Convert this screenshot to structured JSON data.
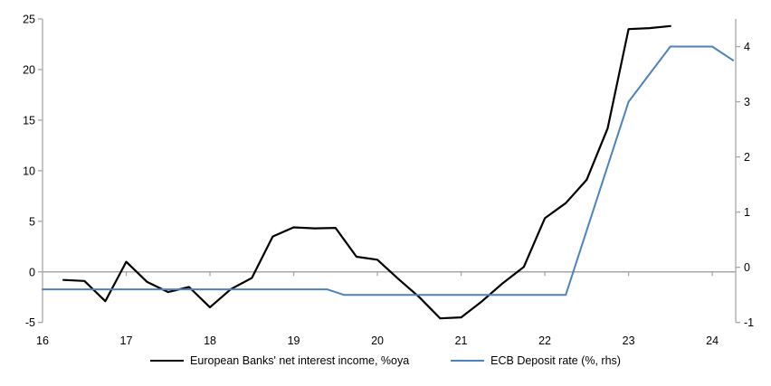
{
  "chart_data": {
    "type": "line",
    "title": "",
    "xlabel": "",
    "ylabel_left": "",
    "ylabel_right": "",
    "background": "#ffffff",
    "axis_color": "#a6a6a6",
    "text_color": "#000000",
    "grid": false,
    "zero_line": true,
    "x_axis": {
      "min": 16,
      "max": 24.28,
      "ticks": [
        16,
        17,
        18,
        19,
        20,
        21,
        22,
        23,
        24
      ]
    },
    "left_axis": {
      "min": -5,
      "max": 25,
      "ticks": [
        -5,
        0,
        5,
        10,
        15,
        20,
        25
      ]
    },
    "right_axis": {
      "min": -1,
      "max": 4.5,
      "ticks": [
        -1,
        0,
        1,
        2,
        3,
        4
      ]
    },
    "series": [
      {
        "name": "European Banks' net interest income, %oya",
        "axis": "left",
        "color": "#000000",
        "line_width": 2.2,
        "points": [
          [
            16.25,
            -0.8
          ],
          [
            16.5,
            -0.9
          ],
          [
            16.75,
            -2.9
          ],
          [
            17.0,
            1.0
          ],
          [
            17.25,
            -1.0
          ],
          [
            17.5,
            -2.0
          ],
          [
            17.75,
            -1.5
          ],
          [
            18.0,
            -3.5
          ],
          [
            18.25,
            -1.7
          ],
          [
            18.5,
            -0.6
          ],
          [
            18.75,
            3.5
          ],
          [
            19.0,
            4.4
          ],
          [
            19.25,
            4.3
          ],
          [
            19.5,
            4.35
          ],
          [
            19.75,
            1.5
          ],
          [
            20.0,
            1.2
          ],
          [
            20.25,
            -0.7
          ],
          [
            20.5,
            -2.5
          ],
          [
            20.75,
            -4.6
          ],
          [
            21.0,
            -4.5
          ],
          [
            21.25,
            -2.9
          ],
          [
            21.5,
            -1.1
          ],
          [
            21.75,
            0.5
          ],
          [
            22.0,
            5.3
          ],
          [
            22.25,
            6.8
          ],
          [
            22.5,
            9.1
          ],
          [
            22.75,
            14.2
          ],
          [
            23.0,
            24.0
          ],
          [
            23.25,
            24.1
          ],
          [
            23.5,
            24.3
          ]
        ]
      },
      {
        "name": "ECB Deposit rate (%, rhs)",
        "axis": "right",
        "color": "#4e81bd",
        "line_width": 2,
        "points": [
          [
            16.0,
            -0.4
          ],
          [
            19.4,
            -0.4
          ],
          [
            19.6,
            -0.5
          ],
          [
            22.25,
            -0.5
          ],
          [
            23.0,
            3.0
          ],
          [
            23.25,
            3.5
          ],
          [
            23.5,
            4.0
          ],
          [
            24.0,
            4.0
          ],
          [
            24.25,
            3.75
          ]
        ]
      }
    ],
    "legend_position": "bottom-center"
  },
  "legend": {
    "items": [
      {
        "label": "European Banks' net interest income, %oya"
      },
      {
        "label": "ECB Deposit rate (%, rhs)"
      }
    ]
  }
}
